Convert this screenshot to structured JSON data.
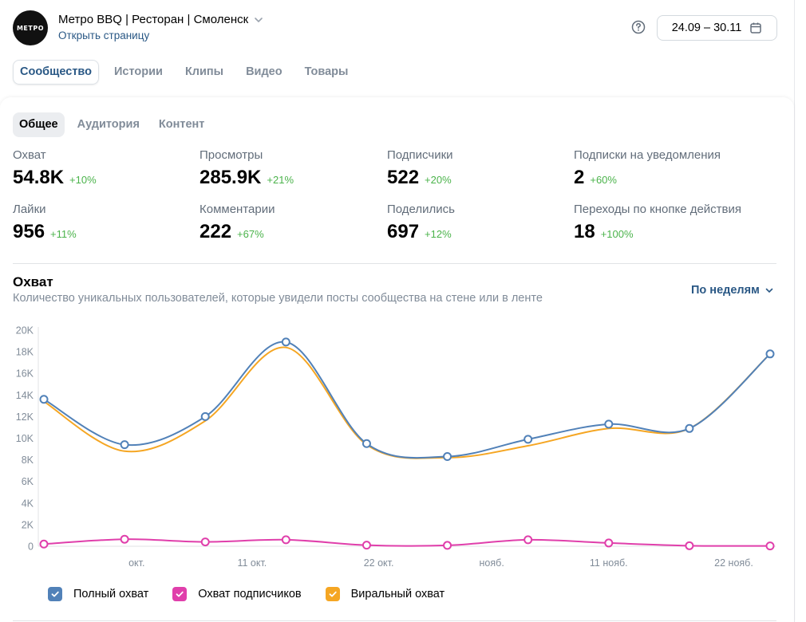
{
  "header": {
    "group_name": "Метро BBQ | Ресторан | Смоленск",
    "avatar_text": "МЕТРО",
    "open_link": "Открыть страницу",
    "date_range": "24.09 – 30.11"
  },
  "tabs": [
    "Сообщество",
    "Истории",
    "Клипы",
    "Видео",
    "Товары"
  ],
  "subtabs": [
    "Общее",
    "Аудитория",
    "Контент"
  ],
  "metrics": [
    {
      "label": "Охват",
      "value": "54.8K",
      "delta": "+10%"
    },
    {
      "label": "Просмотры",
      "value": "285.9K",
      "delta": "+21%"
    },
    {
      "label": "Подписчики",
      "value": "522",
      "delta": "+20%"
    },
    {
      "label": "Подписки на уведомления",
      "value": "2",
      "delta": "+60%"
    },
    {
      "label": "Лайки",
      "value": "956",
      "delta": "+11%"
    },
    {
      "label": "Комментарии",
      "value": "222",
      "delta": "+67%"
    },
    {
      "label": "Поделились",
      "value": "697",
      "delta": "+12%"
    },
    {
      "label": "Переходы по кнопке действия",
      "value": "18",
      "delta": "+100%"
    }
  ],
  "chart_section": {
    "title": "Охват",
    "subtitle": "Количество уникальных пользователей, которые увидели посты сообщества на стене или в ленте",
    "period_label": "По неделям"
  },
  "chart_data": {
    "type": "line",
    "title": "Охват",
    "ylim": [
      0,
      20000
    ],
    "y_ticks": [
      "0",
      "2K",
      "4K",
      "6K",
      "8K",
      "10K",
      "12K",
      "14K",
      "16K",
      "18K",
      "20K"
    ],
    "x_tick_labels": [
      "окт.",
      "11 окт.",
      "22 окт.",
      "нояб.",
      "11 нояб.",
      "22 нояб."
    ],
    "x_tick_positions": [
      1.15,
      2.58,
      4.15,
      5.55,
      7.0,
      8.55
    ],
    "x": [
      0,
      1,
      2,
      3,
      4,
      5,
      6,
      7,
      8,
      9
    ],
    "series": [
      {
        "name": "Полный охват",
        "color": "#5181b8",
        "values": [
          13600,
          9400,
          12000,
          18900,
          9500,
          8300,
          9900,
          11300,
          10900,
          17800
        ]
      },
      {
        "name": "Охват подписчиков",
        "color": "#e03fab",
        "values": [
          200,
          650,
          400,
          600,
          100,
          80,
          600,
          300,
          50,
          30
        ]
      },
      {
        "name": "Виральный охват",
        "color": "#f5a623",
        "values": [
          13400,
          8800,
          11600,
          18400,
          9400,
          8200,
          9300,
          10900,
          10900,
          17800
        ]
      }
    ]
  },
  "legend": [
    {
      "label": "Полный охват",
      "color": "#5181b8"
    },
    {
      "label": "Охват подписчиков",
      "color": "#e03fab"
    },
    {
      "label": "Виральный охват",
      "color": "#f5a623"
    }
  ]
}
